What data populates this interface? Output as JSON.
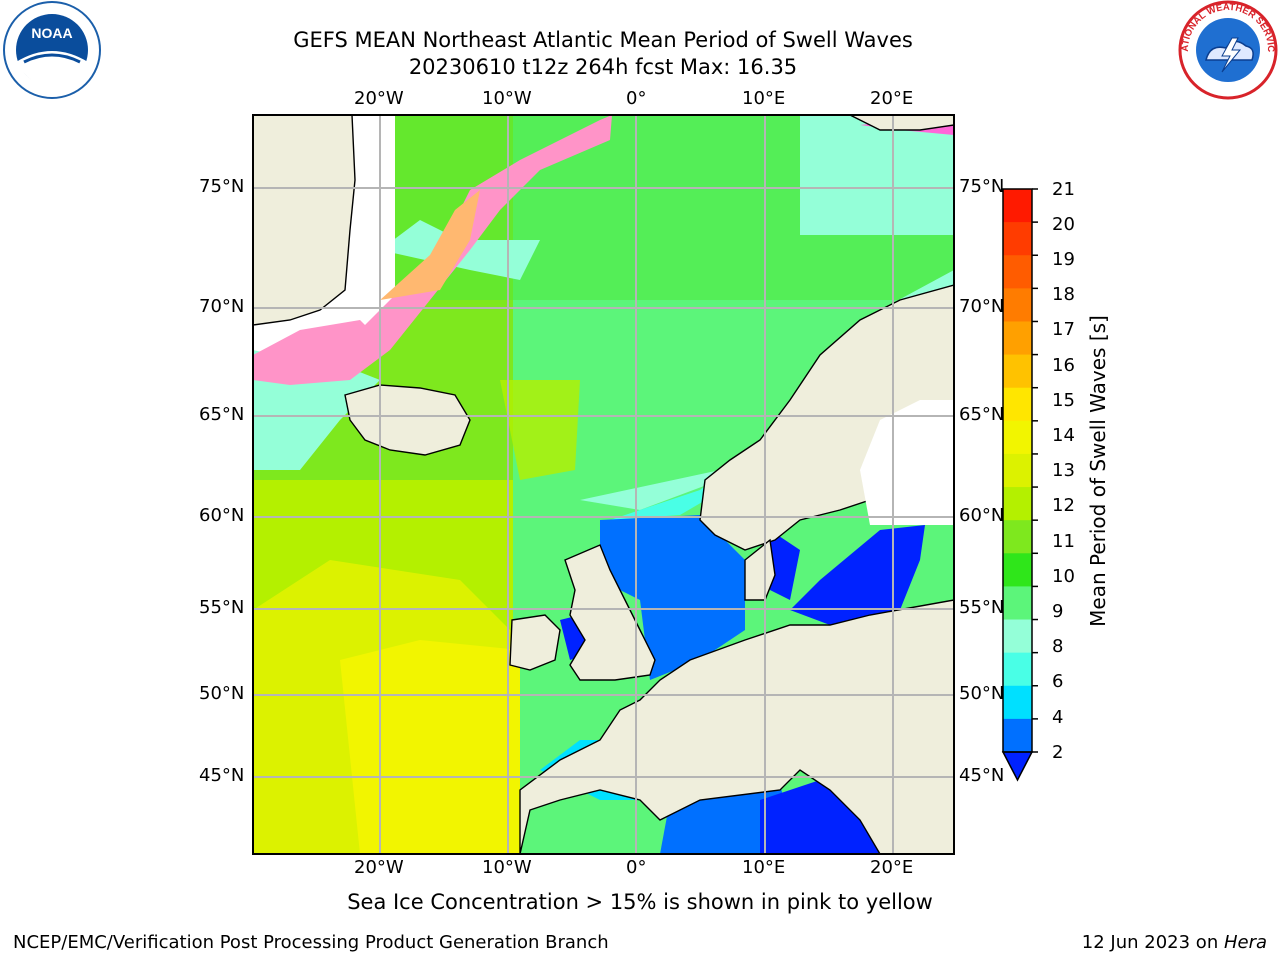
{
  "title": {
    "line1": "GEFS MEAN Northeast Atlantic Mean Period of Swell Waves",
    "line2": "20230610 t12z 264h fcst   Max: 16.35"
  },
  "logos": {
    "left": "noaa-logo",
    "left_text": "NOAA",
    "right": "national-weather-service-logo",
    "right_text": "NATIONAL WEATHER SERVICE"
  },
  "map": {
    "projection": "lat-lon",
    "lon_ticks": [
      "20°W",
      "10°W",
      "0°",
      "10°E",
      "20°E"
    ],
    "lat_ticks": [
      "75°N",
      "70°N",
      "65°N",
      "60°N",
      "55°N",
      "50°N",
      "45°N"
    ],
    "grid": true,
    "colors": {
      "land": "#efeedc",
      "ice": "#ffffff",
      "coast": "#000000",
      "gridline": "#b5b5b5"
    }
  },
  "colorbar": {
    "label": "Mean Period of Swell Waves [s]",
    "ticks": [
      "21",
      "20",
      "19",
      "18",
      "17",
      "16",
      "15",
      "14",
      "13",
      "12",
      "11",
      "10",
      "9",
      "8",
      "6",
      "4",
      "2"
    ],
    "colors_top_to_bottom": [
      "#ff1a00",
      "#ff3c00",
      "#ff5c00",
      "#ff7c00",
      "#ffa000",
      "#ffc200",
      "#ffe600",
      "#f2f500",
      "#dcf200",
      "#b4f000",
      "#7ee81e",
      "#2fe61a",
      "#5cf57a",
      "#94ffd8",
      "#49ffe6",
      "#00e0ff",
      "#0070ff"
    ],
    "extend_color": "#0022ff"
  },
  "footnote": "Sea Ice Concentration > 15% is shown in pink to yellow",
  "footer": {
    "left": "NCEP/EMC/Verification Post Processing Product Generation Branch",
    "right_prefix": "12 Jun 2023 on ",
    "right_host": "Hera"
  }
}
